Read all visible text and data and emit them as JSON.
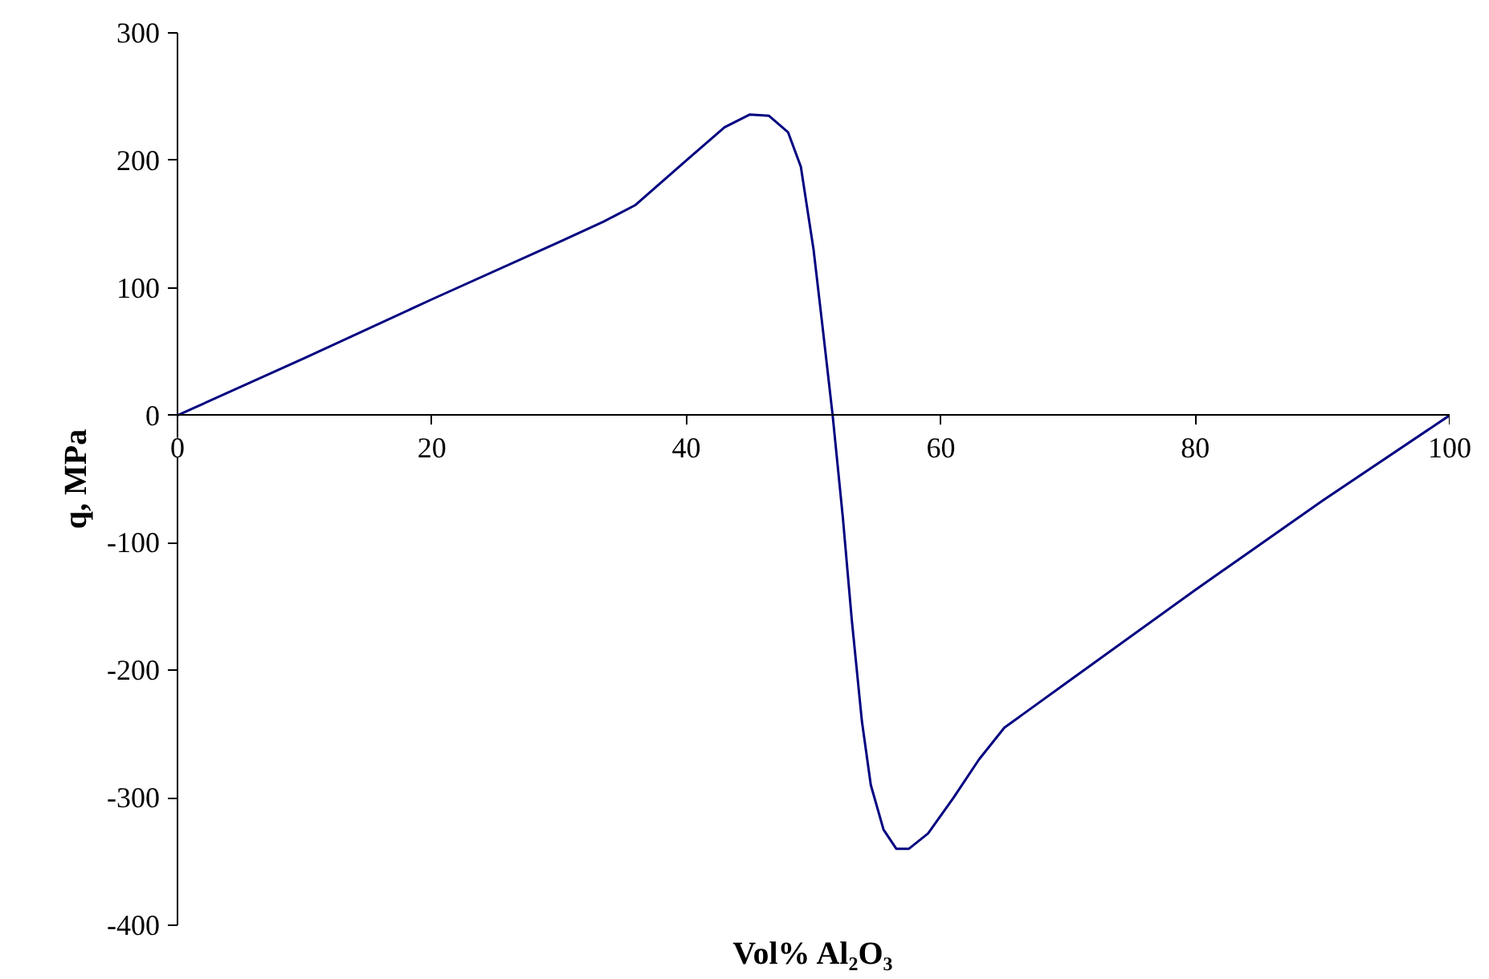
{
  "chart_data": {
    "type": "line",
    "xlabel": "Vol% Al₂O₃",
    "ylabel": "q, MPa",
    "xlim": [
      0,
      100
    ],
    "ylim": [
      -400,
      300
    ],
    "xticks": [
      0,
      20,
      40,
      60,
      80,
      100
    ],
    "yticks": [
      -400,
      -300,
      -200,
      -100,
      0,
      100,
      200,
      300
    ],
    "grid": false,
    "marker": "none",
    "line_style": "solid",
    "series": [
      {
        "color": "#000080",
        "x": [
          0,
          10,
          20,
          30,
          33.5,
          36,
          40,
          43,
          45,
          46.5,
          48,
          49,
          50,
          50.7,
          51.5,
          52.3,
          53,
          53.8,
          54.5,
          55.5,
          56.5,
          57.5,
          59,
          61,
          63,
          65,
          70,
          80,
          90,
          100
        ],
        "values": [
          0,
          45,
          91,
          136,
          152,
          165,
          200,
          226,
          236,
          235,
          222,
          195,
          130,
          70,
          0,
          -80,
          -160,
          -240,
          -290,
          -325,
          -340,
          -340,
          -328,
          -300,
          -270,
          -245,
          -209,
          -137,
          -67,
          0
        ]
      }
    ]
  }
}
